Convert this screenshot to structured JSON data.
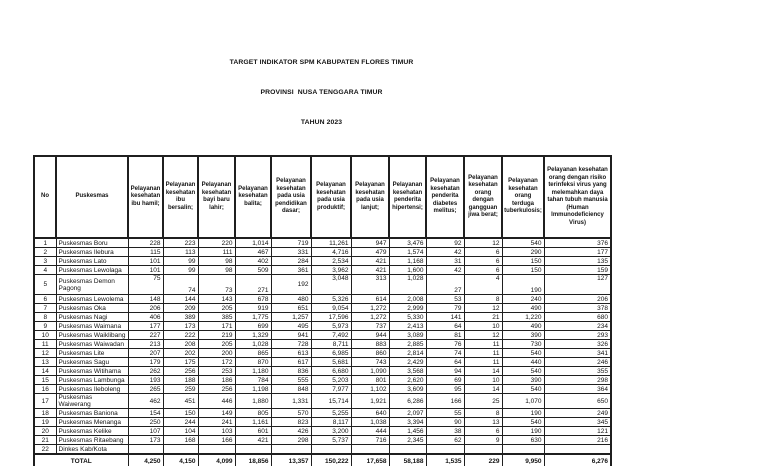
{
  "title": {
    "line1": "TARGET INDIKATOR SPM KABUPATEN FLORES TIMUR",
    "line2": "PROVINSI  NUSA TENGGARA TIMUR",
    "line3": "TAHUN 2023"
  },
  "colors": {
    "border": "#1f1f1f",
    "text": "#121212",
    "background": "#ffffff"
  },
  "table": {
    "columns": [
      "No",
      "Puskesmas",
      "Pelayanan kesehatan ibu hamil;",
      "Pelayanan kesehatan ibu bersalin;",
      "Pelayanan kesehatan bayi baru lahir;",
      "Pelayanan kesehatan balita;",
      "Pelayanan kesehatan pada usia pendidikan dasar;",
      "Pelayanan kesehatan pada usia produktif;",
      "Pelayanan kesehatan pada usia lanjut;",
      "Pelayanan kesehatan penderita hipertensi;",
      "Pelayanan kesehatan penderita diabetes melitus;",
      "Pelayanan kesehatan orang dengan gangguan jiwa berat;",
      "Pelayanan kesehatan orang terduga tuberkulosis;",
      "Pelayanan kesehatan orang dengan risiko terinfeksi virus yang melemahkan daya tahan tubuh manusia (Human Immunodeficiency Virus)"
    ],
    "rows": [
      {
        "no": "1",
        "name": "Puskesmas Boru",
        "values": [
          "228",
          "223",
          "220",
          "1,014",
          "719",
          "11,261",
          "947",
          "3,476",
          "92",
          "12",
          "540",
          "376"
        ]
      },
      {
        "no": "2",
        "name": "Puskesmas Ilebura",
        "values": [
          "115",
          "113",
          "111",
          "467",
          "331",
          "4,716",
          "479",
          "1,574",
          "42",
          "6",
          "290",
          "177"
        ]
      },
      {
        "no": "3",
        "name": "Puskesmas Lato",
        "values": [
          "101",
          "99",
          "98",
          "402",
          "284",
          "2,534",
          "421",
          "1,168",
          "31",
          "6",
          "150",
          "135"
        ]
      },
      {
        "no": "4",
        "name": "Puskesmas Lewolaga",
        "values": [
          "101",
          "99",
          "98",
          "509",
          "361",
          "3,962",
          "421",
          "1,600",
          "42",
          "6",
          "150",
          "159"
        ]
      },
      {
        "no": "5",
        "name": "Puskesmas Demon Pagong",
        "values": [
          "75",
          "74",
          "73",
          "271",
          "192",
          "3,048",
          "313",
          "1,028",
          "27",
          "4",
          "190",
          "127"
        ],
        "va": [
          "t",
          "b",
          "b",
          "b",
          "m",
          "t",
          "t",
          "t",
          "b",
          "t",
          "b",
          "t"
        ]
      },
      {
        "no": "6",
        "name": "Puskesmas Lewolema",
        "values": [
          "148",
          "144",
          "143",
          "678",
          "480",
          "5,326",
          "614",
          "2,008",
          "53",
          "8",
          "240",
          "206"
        ]
      },
      {
        "no": "7",
        "name": "Puskesmas Oka",
        "values": [
          "206",
          "209",
          "205",
          "919",
          "651",
          "9,054",
          "1,272",
          "2,999",
          "79",
          "12",
          "490",
          "378"
        ]
      },
      {
        "no": "8",
        "name": "Puskesmas Nagi",
        "values": [
          "406",
          "389",
          "385",
          "1,775",
          "1,257",
          "17,596",
          "1,272",
          "5,330",
          "141",
          "21",
          "1,220",
          "680"
        ]
      },
      {
        "no": "9",
        "name": "Puskesmas Waimana",
        "values": [
          "177",
          "173",
          "171",
          "699",
          "495",
          "5,973",
          "737",
          "2,413",
          "64",
          "10",
          "490",
          "234"
        ]
      },
      {
        "no": "10",
        "name": "Puskesmas Waiklibang",
        "values": [
          "227",
          "222",
          "219",
          "1,329",
          "941",
          "7,492",
          "944",
          "3,089",
          "81",
          "12",
          "390",
          "293"
        ]
      },
      {
        "no": "11",
        "name": "Puskesmas Waiwadan",
        "values": [
          "213",
          "208",
          "205",
          "1,028",
          "728",
          "8,711",
          "883",
          "2,885",
          "76",
          "11",
          "730",
          "326"
        ]
      },
      {
        "no": "12",
        "name": "Puskesmas Lite",
        "values": [
          "207",
          "202",
          "200",
          "865",
          "613",
          "6,985",
          "860",
          "2,814",
          "74",
          "11",
          "540",
          "341"
        ]
      },
      {
        "no": "13",
        "name": "Puskesmas Sagu",
        "values": [
          "179",
          "175",
          "172",
          "870",
          "617",
          "5,681",
          "743",
          "2,429",
          "64",
          "11",
          "440",
          "246"
        ]
      },
      {
        "no": "14",
        "name": "Puskesmas Witihama",
        "values": [
          "262",
          "256",
          "253",
          "1,180",
          "836",
          "6,680",
          "1,090",
          "3,568",
          "94",
          "14",
          "540",
          "355"
        ]
      },
      {
        "no": "15",
        "name": "Puskesmas Lambunga",
        "values": [
          "193",
          "188",
          "186",
          "784",
          "555",
          "5,203",
          "801",
          "2,620",
          "69",
          "10",
          "390",
          "298"
        ]
      },
      {
        "no": "16",
        "name": "Puskesmas Ileboleng",
        "values": [
          "265",
          "259",
          "256",
          "1,198",
          "848",
          "7,977",
          "1,102",
          "3,609",
          "95",
          "14",
          "540",
          "364"
        ]
      },
      {
        "no": "17",
        "name": "Puskesmas Waiwerang",
        "values": [
          "462",
          "451",
          "446",
          "1,880",
          "1,331",
          "15,714",
          "1,921",
          "6,286",
          "166",
          "25",
          "1,070",
          "650"
        ]
      },
      {
        "no": "18",
        "name": "Puskesmas Baniona",
        "values": [
          "154",
          "150",
          "149",
          "805",
          "570",
          "5,255",
          "640",
          "2,097",
          "55",
          "8",
          "190",
          "249"
        ]
      },
      {
        "no": "19",
        "name": "Puskesmas Menanga",
        "values": [
          "250",
          "244",
          "241",
          "1,161",
          "823",
          "8,117",
          "1,038",
          "3,394",
          "90",
          "13",
          "540",
          "345"
        ]
      },
      {
        "no": "20",
        "name": "Puskesmas Kelike",
        "values": [
          "107",
          "104",
          "103",
          "601",
          "426",
          "3,200",
          "444",
          "1,456",
          "38",
          "6",
          "190",
          "121"
        ]
      },
      {
        "no": "21",
        "name": "Puskesmas Ritaebang",
        "values": [
          "173",
          "168",
          "166",
          "421",
          "298",
          "5,737",
          "716",
          "2,345",
          "62",
          "9",
          "630",
          "216"
        ]
      },
      {
        "no": "22",
        "name": "Dinkes Kab/Kota",
        "values": [
          "",
          "",
          "",
          "",
          "",
          "",
          "",
          "",
          "",
          "",
          "",
          ""
        ]
      }
    ],
    "total": {
      "label": "TOTAL",
      "values": [
        "4,250",
        "4,150",
        "4,099",
        "18,856",
        "13,357",
        "150,222",
        "17,658",
        "58,188",
        "1,535",
        "229",
        "9,950",
        "6,276"
      ]
    }
  }
}
